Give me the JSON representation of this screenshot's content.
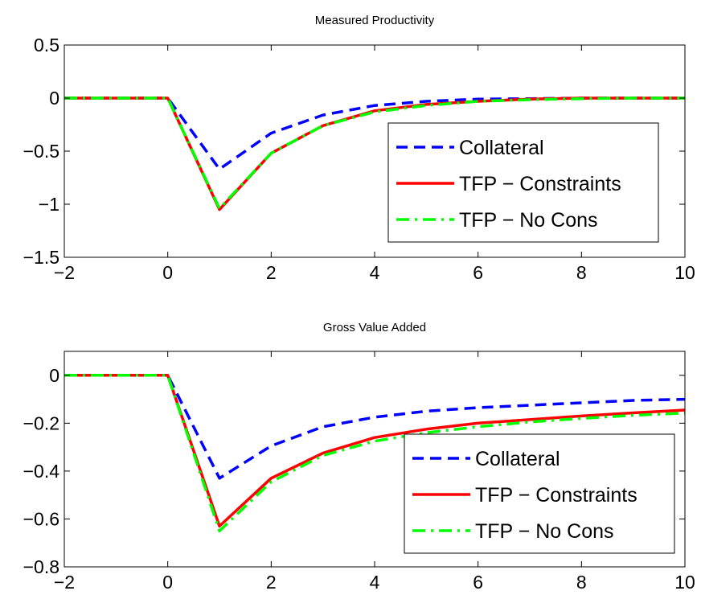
{
  "chart_data": [
    {
      "type": "line",
      "title": "Measured Productivity",
      "xlabel": "",
      "ylabel": "",
      "xlim": [
        -2,
        10
      ],
      "ylim": [
        -1.5,
        0.5
      ],
      "xticks": [
        "-2",
        "0",
        "2",
        "4",
        "6",
        "8",
        "10"
      ],
      "yticks": [
        "-1.5",
        "-1",
        "-0.5",
        "0",
        "0.5"
      ],
      "x": [
        -2,
        -1,
        0,
        1,
        2,
        3,
        4,
        5,
        6,
        7,
        8,
        9,
        10
      ],
      "legend_position": "lower-right",
      "series": [
        {
          "name": "Collateral",
          "color": "#0000ff",
          "style": "dashed",
          "values": [
            0,
            0,
            0,
            -0.67,
            -0.33,
            -0.16,
            -0.07,
            -0.03,
            -0.01,
            -0.005,
            0,
            0,
            0
          ]
        },
        {
          "name": "TFP − Constraints",
          "color": "#ff0000",
          "style": "solid",
          "values": [
            0,
            0,
            0,
            -1.05,
            -0.52,
            -0.26,
            -0.12,
            -0.06,
            -0.03,
            -0.01,
            0,
            0,
            0
          ]
        },
        {
          "name": "TFP − No Cons",
          "color": "#00ff00",
          "style": "dashdot",
          "values": [
            0,
            0,
            0,
            -1.04,
            -0.52,
            -0.26,
            -0.13,
            -0.07,
            -0.03,
            -0.015,
            -0.005,
            0,
            0
          ]
        }
      ]
    },
    {
      "type": "line",
      "title": "Gross Value Added",
      "xlabel": "",
      "ylabel": "",
      "xlim": [
        -2,
        10
      ],
      "ylim": [
        -0.8,
        0.1
      ],
      "xticks": [
        "-2",
        "0",
        "2",
        "4",
        "6",
        "8",
        "10"
      ],
      "yticks": [
        "-0.8",
        "-0.6",
        "-0.4",
        "-0.2",
        "0"
      ],
      "x": [
        -2,
        -1,
        0,
        1,
        2,
        3,
        4,
        5,
        6,
        7,
        8,
        9,
        10
      ],
      "legend_position": "lower-right",
      "series": [
        {
          "name": "Collateral",
          "color": "#0000ff",
          "style": "dashed",
          "values": [
            0,
            0,
            0,
            -0.43,
            -0.295,
            -0.215,
            -0.175,
            -0.15,
            -0.135,
            -0.125,
            -0.115,
            -0.105,
            -0.1
          ]
        },
        {
          "name": "TFP − Constraints",
          "color": "#ff0000",
          "style": "solid",
          "values": [
            0,
            0,
            0,
            -0.63,
            -0.43,
            -0.325,
            -0.26,
            -0.225,
            -0.2,
            -0.185,
            -0.17,
            -0.157,
            -0.145
          ]
        },
        {
          "name": "TFP − No Cons",
          "color": "#00ff00",
          "style": "dashdot",
          "values": [
            0,
            0,
            0,
            -0.65,
            -0.445,
            -0.335,
            -0.275,
            -0.24,
            -0.215,
            -0.195,
            -0.18,
            -0.167,
            -0.158
          ]
        }
      ]
    }
  ]
}
